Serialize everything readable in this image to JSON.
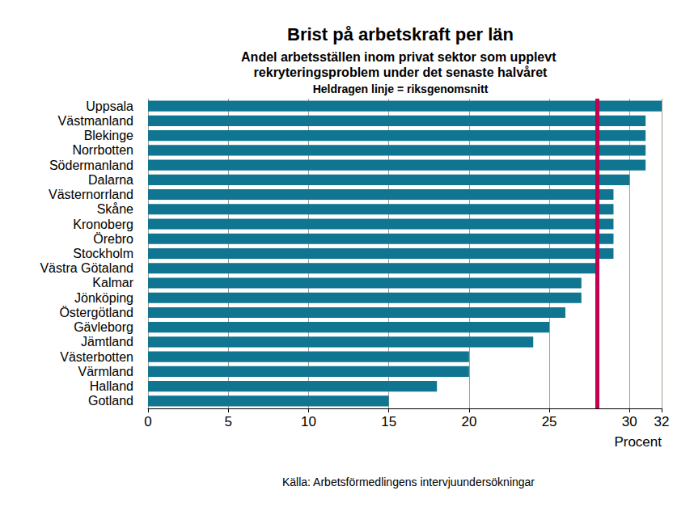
{
  "chart_data": {
    "type": "bar",
    "orientation": "horizontal",
    "title": "Brist på arbetskraft per län",
    "subtitle": "Andel arbetsställen inom privat sektor som upplevt rekryteringsproblem under det senaste halvåret",
    "annotation": "Heldragen linje = riksgenomsnitt",
    "source": "Källa: Arbetsförmedlingens intervjuundersökningar",
    "x_label": "Procent",
    "categories": [
      "Uppsala",
      "Västmanland",
      "Blekinge",
      "Norrbotten",
      "Södermanland",
      "Dalarna",
      "Västernorrland",
      "Skåne",
      "Kronoberg",
      "Örebro",
      "Stockholm",
      "Västra Götaland",
      "Kalmar",
      "Jönköping",
      "Östergötland",
      "Gävleborg",
      "Jämtland",
      "Västerbotten",
      "Värmland",
      "Halland",
      "Gotland"
    ],
    "values": [
      32,
      31,
      31,
      31,
      31,
      30,
      29,
      29,
      29,
      29,
      29,
      28,
      27,
      27,
      26,
      25,
      24,
      20,
      20,
      18,
      15
    ],
    "average": 28,
    "color": "#0f7591",
    "xlim": [
      0,
      32
    ],
    "xticks": [
      0,
      5,
      10,
      15,
      20,
      25,
      30
    ],
    "grid": true
  }
}
